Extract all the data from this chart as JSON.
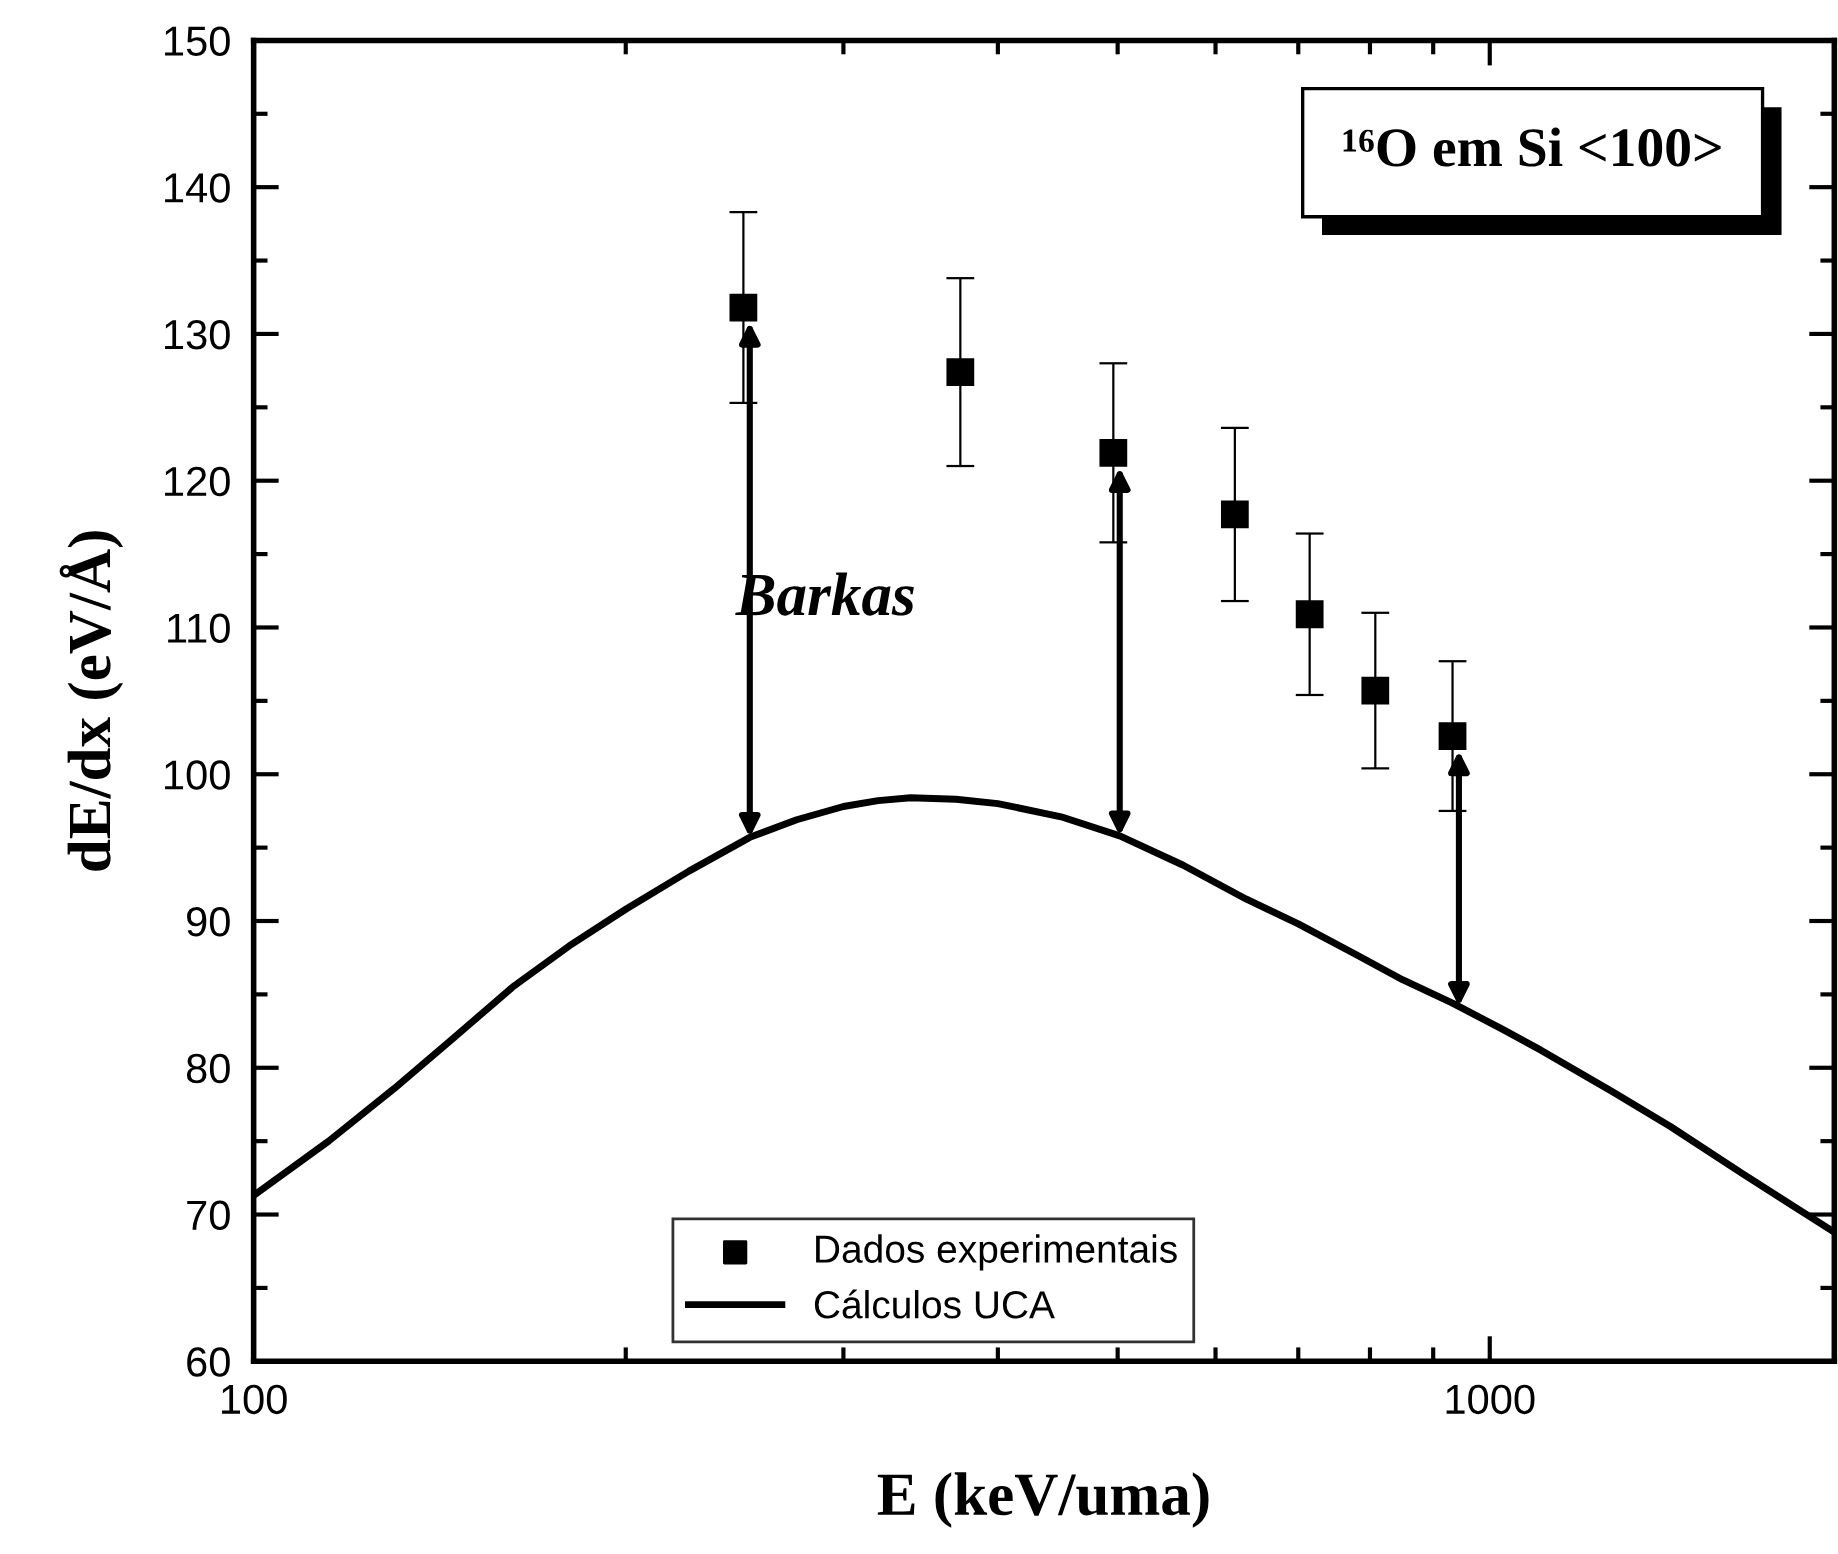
{
  "chart_data": {
    "type": "scatter",
    "title": "¹⁶O em Si <100>",
    "xlabel": "E (keV/uma)",
    "ylabel": "dE/dx (eV/Å)",
    "log": "x",
    "xlim": [
      100,
      1900
    ],
    "xticks": [
      100,
      1000
    ],
    "ylim": [
      60,
      150
    ],
    "yticks": [
      60,
      70,
      80,
      90,
      100,
      110,
      120,
      130,
      140,
      150
    ],
    "grid": false,
    "legend": "bottom",
    "annotations": [
      "Barkas"
    ],
    "series": [
      {
        "name": "Dados experimentais",
        "color": "#000000",
        "marker": "square",
        "x": [
          249,
          373,
          496,
          622,
          715,
          808,
          933
        ],
        "values": [
          131.8,
          127.4,
          121.9,
          117.7,
          110.9,
          105.7,
          102.6
        ],
        "errors": [
          6.5,
          6.4,
          6.1,
          5.9,
          5.5,
          5.3,
          5.1
        ]
      },
      {
        "name": "Cálculos UCA",
        "type": "line",
        "color": "#000000",
        "line_style": "solid",
        "x": [
          100,
          115,
          130,
          145,
          162,
          180,
          200,
          225,
          252,
          275,
          300,
          320,
          340,
          370,
          400,
          450,
          502,
          565,
          635,
          700,
          780,
          850,
          933,
          1020,
          1100,
          1255,
          1400,
          1600,
          1900
        ],
        "values": [
          71.3,
          75.0,
          78.6,
          82.0,
          85.5,
          88.3,
          90.8,
          93.4,
          95.7,
          96.9,
          97.8,
          98.2,
          98.4,
          98.3,
          98.0,
          97.1,
          95.8,
          93.8,
          91.5,
          89.8,
          87.7,
          86.0,
          84.4,
          82.7,
          81.2,
          78.4,
          76.0,
          72.8,
          68.8
        ]
      }
    ]
  }
}
